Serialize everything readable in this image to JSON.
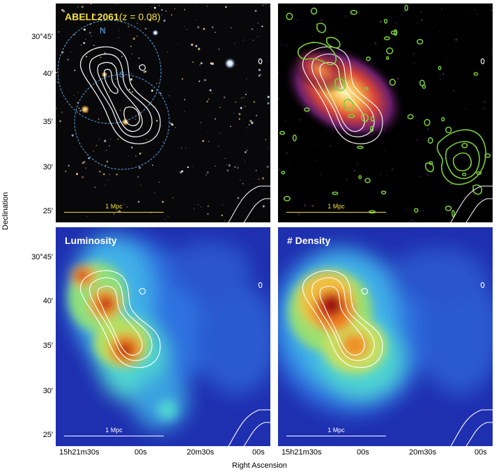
{
  "panels": {
    "top_left": {
      "title_main": "ABELL2061",
      "title_sub": "(z = 0.08)",
      "marker_n": "N",
      "marker_s": "S",
      "scale": "1 Mpc"
    },
    "top_right": {
      "scale": "1 Mpc"
    },
    "bottom_left": {
      "title": "Luminosity",
      "scale": "1 Mpc"
    },
    "bottom_right": {
      "title": "# Density",
      "scale": "1 Mpc"
    }
  },
  "axes": {
    "xlabel": "Right Ascension",
    "ylabel": "Declination",
    "ra_ticks": [
      "15h21m30s",
      "00s",
      "20m30s",
      "00s"
    ],
    "dec_ticks": [
      "30°45′",
      "40′",
      "35′",
      "30′",
      "25′"
    ]
  },
  "colors": {
    "title_yellow": "#f5e03a",
    "marker_blue": "#5aa6e8",
    "radio_green": "#7ccf3a",
    "contour": "#ffffff"
  }
}
